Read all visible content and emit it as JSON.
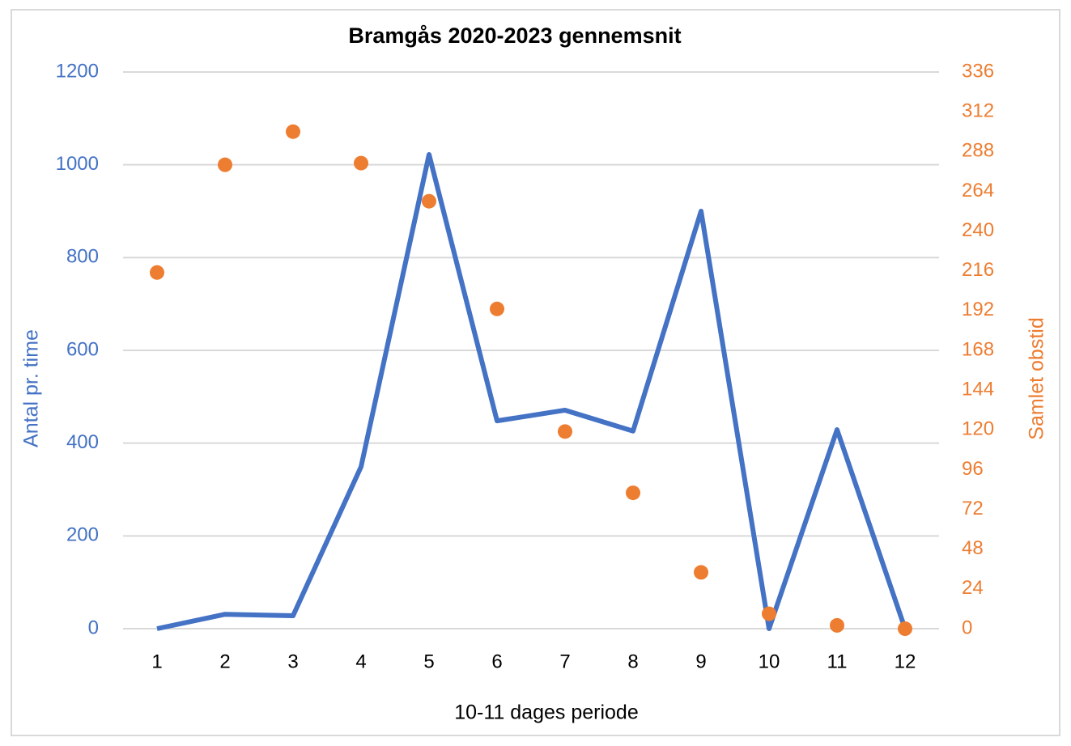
{
  "chart_data": {
    "type": "line",
    "title": "Bramgås 2020-2023 gennemsnit",
    "x_label": "10-11 dages periode",
    "y_label": "Antal pr. time",
    "y2_label": "Samlet obstid",
    "categories": [
      "1",
      "2",
      "3",
      "4",
      "5",
      "6",
      "7",
      "8",
      "9",
      "10",
      "11",
      "12"
    ],
    "series": [
      {
        "name": "Antal pr. time",
        "type": "line",
        "color": "#4472c4",
        "values": [
          0,
          31,
          28,
          349,
          1022,
          448,
          471,
          426,
          900,
          0,
          429,
          0
        ]
      },
      {
        "name": "Samlet obstid",
        "type": "scatter",
        "axis": "y2",
        "color": "#ed7d31",
        "values": [
          215,
          280,
          300,
          281,
          258,
          193,
          119,
          82,
          34,
          9,
          2,
          0
        ]
      }
    ],
    "ylim": [
      0,
      1200
    ],
    "yticks": [
      0,
      200,
      400,
      600,
      800,
      1000,
      1200
    ],
    "y2lim": [
      0,
      336
    ],
    "y2ticks": [
      0,
      24,
      48,
      72,
      96,
      120,
      144,
      168,
      192,
      216,
      240,
      264,
      288,
      312,
      336
    ],
    "grid": true
  }
}
